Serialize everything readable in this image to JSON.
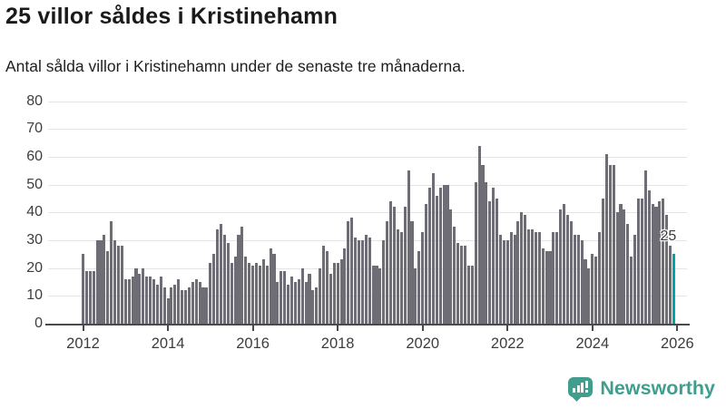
{
  "header": {
    "title": "25 villor såldes i Kristinehamn",
    "subtitle": "Antal sålda villor i Kristinehamn under de senaste tre månaderna."
  },
  "chart_data": {
    "type": "bar",
    "title": "25 villor såldes i Kristinehamn",
    "subtitle": "Antal sålda villor i Kristinehamn under de senaste tre månaderna.",
    "frequency": "monthly",
    "start": "2012-01",
    "end": "2026-01",
    "ylim": [
      0,
      80
    ],
    "grid": true,
    "y_ticks": [
      0,
      10,
      20,
      30,
      40,
      50,
      60,
      70,
      80
    ],
    "x_ticks": [
      "2012",
      "2014",
      "2016",
      "2018",
      "2020",
      "2022",
      "2024",
      "2026"
    ],
    "bar_color": "#6e6d76",
    "values": [
      25,
      19,
      19,
      19,
      30,
      30,
      32,
      26,
      37,
      30,
      28,
      28,
      16,
      16,
      17,
      20,
      18,
      20,
      17,
      17,
      16,
      14,
      17,
      13,
      9,
      13,
      14,
      16,
      12,
      12,
      13,
      15,
      16,
      15,
      13,
      13,
      22,
      25,
      34,
      36,
      32,
      29,
      22,
      24,
      32,
      35,
      24,
      22,
      21,
      22,
      21,
      23,
      21,
      27,
      25,
      15,
      19,
      19,
      14,
      17,
      15,
      16,
      20,
      15,
      18,
      12,
      13,
      20,
      28,
      26,
      18,
      22,
      22,
      23,
      27,
      37,
      38,
      31,
      30,
      30,
      32,
      31,
      21,
      21,
      20,
      30,
      37,
      44,
      42,
      34,
      33,
      42,
      55,
      37,
      20,
      26,
      33,
      43,
      49,
      54,
      46,
      49,
      50,
      50,
      41,
      35,
      29,
      28,
      28,
      21,
      21,
      51,
      64,
      57,
      51,
      44,
      49,
      45,
      32,
      30,
      30,
      33,
      32,
      37,
      40,
      39,
      34,
      34,
      33,
      33,
      27,
      26,
      26,
      33,
      33,
      41,
      43,
      39,
      37,
      32,
      32,
      30,
      23,
      20,
      25,
      24,
      33,
      45,
      61,
      57,
      57,
      40,
      43,
      41,
      36,
      24,
      32,
      45,
      45,
      55,
      48,
      43,
      42,
      44,
      45,
      39,
      28,
      25
    ],
    "highlight": {
      "index": 167,
      "value": 25,
      "label": "25",
      "color": "#00a5a5"
    }
  },
  "footer": {
    "brand": "Newsworthy",
    "brand_color": "#419e8f",
    "icon": "bar-chart-speech-bubble-icon"
  }
}
